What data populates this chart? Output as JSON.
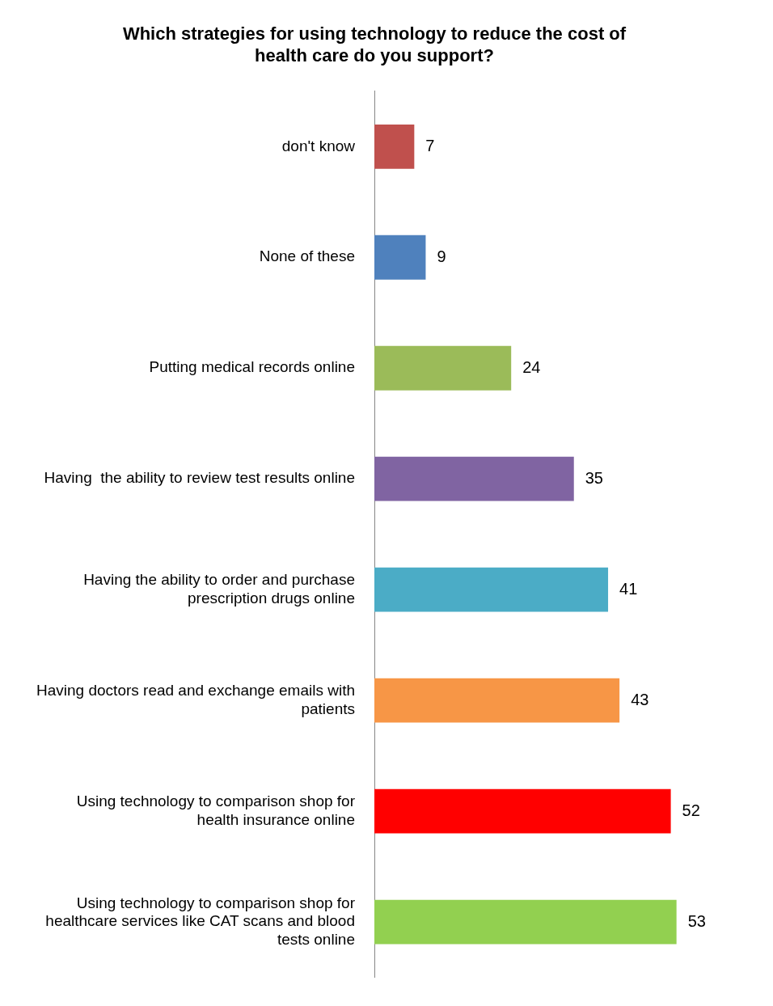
{
  "chart_data": {
    "type": "bar",
    "orientation": "horizontal",
    "title": "Which strategies for using technology to reduce the cost of health care do you support?",
    "categories": [
      "don't know",
      "None of these",
      "Putting medical records online",
      "Having  the ability to review test results online",
      "Having the ability to order and purchase prescription drugs online",
      "Having doctors read and exchange emails with patients",
      "Using technology to comparison shop for health insurance online",
      "Using technology to comparison shop for healthcare services like CAT scans and blood tests online"
    ],
    "values": [
      7,
      9,
      24,
      35,
      41,
      43,
      52,
      53
    ],
    "colors": [
      "#c0504d",
      "#4f81bd",
      "#9bbb59",
      "#8064a2",
      "#4bacc6",
      "#f79646",
      "#ff0000",
      "#92d050"
    ],
    "data_labels": true,
    "legend": false
  }
}
